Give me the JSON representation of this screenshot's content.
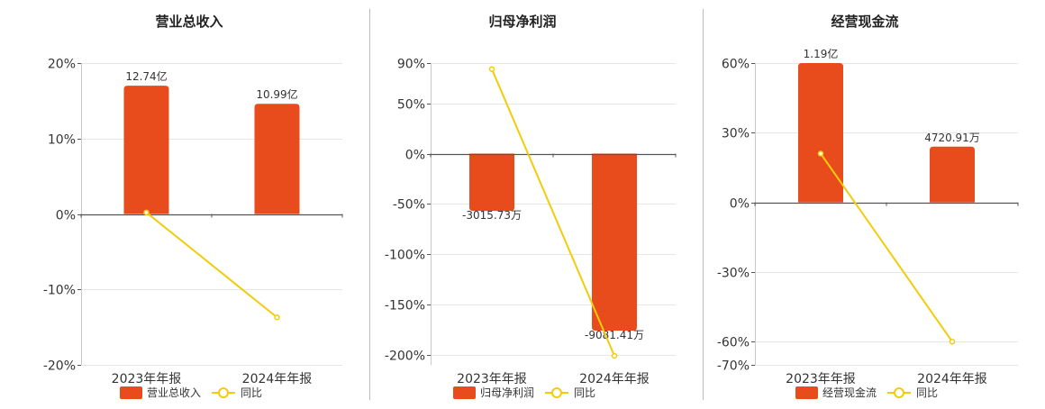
{
  "legend": {
    "yoy_label": "同比"
  },
  "colors": {
    "bar": "#E84B1C",
    "line": "#F2CC0C",
    "divider": "#BBBBBB",
    "grid": "#E6E6E6",
    "axis": "#555555"
  },
  "chart_data": [
    {
      "type": "bar",
      "title": "营业总收入",
      "series_label": "营业总收入",
      "categories": [
        "2023年年报",
        "2024年年报"
      ],
      "bar_heights_pct": [
        17,
        14.6
      ],
      "bar_labels": [
        "12.74亿",
        "10.99亿"
      ],
      "yoy_pct": [
        0.2,
        -13.7
      ],
      "ylim": [
        -20,
        20
      ],
      "yticks": [
        20,
        10,
        0,
        -10,
        -20
      ],
      "ytick_labels": [
        "20%",
        "10%",
        "0%",
        "-10%",
        "-20%"
      ]
    },
    {
      "type": "bar",
      "title": "归母净利润",
      "series_label": "归母净利润",
      "categories": [
        "2023年年报",
        "2024年年报"
      ],
      "bar_heights_pct": [
        -57,
        -176
      ],
      "bar_labels": [
        "-3015.73万",
        "-9081.41万"
      ],
      "yoy_pct": [
        84,
        -201
      ],
      "ylim": [
        -210,
        90
      ],
      "yticks": [
        90,
        50,
        0,
        -50,
        -100,
        -150,
        -200
      ],
      "ytick_labels": [
        "90%",
        "50%",
        "0%",
        "-50%",
        "-100%",
        "-150%",
        "-200%"
      ]
    },
    {
      "type": "bar",
      "title": "经营现金流",
      "series_label": "经营现金流",
      "categories": [
        "2023年年报",
        "2024年年报"
      ],
      "bar_heights_pct": [
        60,
        24
      ],
      "bar_labels": [
        "1.19亿",
        "4720.91万"
      ],
      "yoy_pct": [
        21,
        -60
      ],
      "ylim": [
        -70,
        60
      ],
      "yticks": [
        60,
        30,
        0,
        -30,
        -60,
        -70
      ],
      "ytick_labels": [
        "60%",
        "30%",
        "0%",
        "-30%",
        "-60%",
        "-70%"
      ]
    }
  ]
}
